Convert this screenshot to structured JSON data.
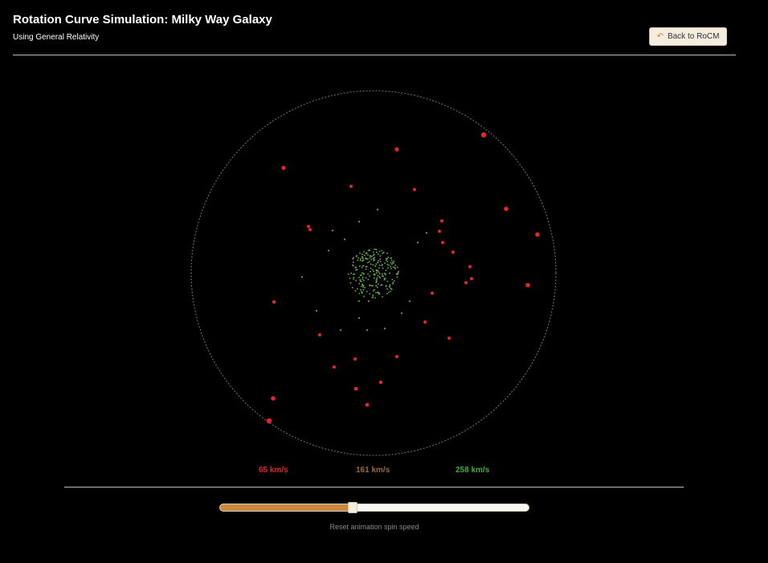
{
  "header": {
    "title": "Rotation Curve Simulation: Milky Way Galaxy",
    "subtitle": "Using General Relativity",
    "back_button": {
      "label": "Back to RoCM",
      "icon": "back-arrow-icon"
    }
  },
  "legend": [
    {
      "label": "65 km/s",
      "color": "#e3262b"
    },
    {
      "label": "161 km/s",
      "color": "#9a6a38"
    },
    {
      "label": "258 km/s",
      "color": "#3fae3b"
    }
  ],
  "slider": {
    "label": "Reset animation spin speed",
    "value_fraction": 0.43,
    "fill_color": "#c98a3f"
  },
  "colors": {
    "background": "#000000",
    "boundary_circle": "#777777",
    "outer_stars": "#e3262b",
    "middle_stars": "#9a6a38",
    "core_stars": "#6fb04a"
  }
}
